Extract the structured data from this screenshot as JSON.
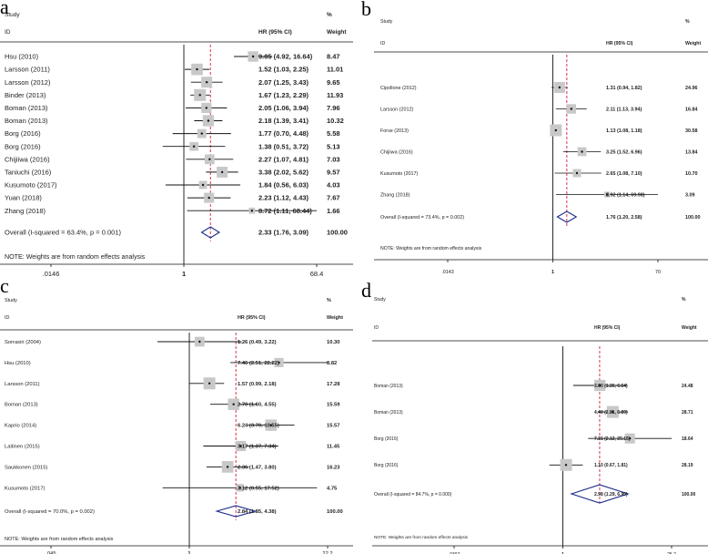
{
  "chart_data": [
    {
      "type": "forest",
      "panel": "a",
      "headers": {
        "study": "Study",
        "id": "ID",
        "hr": "HR (95% CI)",
        "pct": "%",
        "weight": "Weight"
      },
      "studies": [
        {
          "label": "Hsu (2010)",
          "hr": 9.05,
          "lo": 4.92,
          "hi": 16.64,
          "ci": "9.05 (4.92, 16.64)",
          "weight": "8.47"
        },
        {
          "label": "Larsson (2011)",
          "hr": 1.52,
          "lo": 1.03,
          "hi": 2.25,
          "ci": "1.52 (1.03, 2.25)",
          "weight": "11.01"
        },
        {
          "label": "Larsson (2012)",
          "hr": 2.07,
          "lo": 1.25,
          "hi": 3.43,
          "ci": "2.07 (1.25, 3.43)",
          "weight": "9.65"
        },
        {
          "label": "Binder (2013)",
          "hr": 1.67,
          "lo": 1.23,
          "hi": 2.29,
          "ci": "1.67 (1.23, 2.29)",
          "weight": "11.93"
        },
        {
          "label": "Boman (2013)",
          "hr": 2.05,
          "lo": 1.06,
          "hi": 3.94,
          "ci": "2.05 (1.06, 3.94)",
          "weight": "7.96"
        },
        {
          "label": "Boman (2013)",
          "hr": 2.18,
          "lo": 1.39,
          "hi": 3.41,
          "ci": "2.18 (1.39, 3.41)",
          "weight": "10.32"
        },
        {
          "label": "Borg (2016)",
          "hr": 1.77,
          "lo": 0.7,
          "hi": 4.48,
          "ci": "1.77 (0.70, 4.48)",
          "weight": "5.58"
        },
        {
          "label": "Borg (2016)",
          "hr": 1.38,
          "lo": 0.51,
          "hi": 3.72,
          "ci": "1.38 (0.51, 3.72)",
          "weight": "5.13"
        },
        {
          "label": "Chijiiwa (2016)",
          "hr": 2.27,
          "lo": 1.07,
          "hi": 4.81,
          "ci": "2.27 (1.07, 4.81)",
          "weight": "7.03"
        },
        {
          "label": "Taniuchi (2016)",
          "hr": 3.38,
          "lo": 2.02,
          "hi": 5.62,
          "ci": "3.38 (2.02, 5.62)",
          "weight": "9.57"
        },
        {
          "label": "Kusumoto (2017)",
          "hr": 1.84,
          "lo": 0.56,
          "hi": 6.03,
          "ci": "1.84 (0.56, 6.03)",
          "weight": "4.03"
        },
        {
          "label": "Yuan (2018)",
          "hr": 2.23,
          "lo": 1.12,
          "hi": 4.43,
          "ci": "2.23 (1.12, 4.43)",
          "weight": "7.67"
        },
        {
          "label": "Zhang (2018)",
          "hr": 8.72,
          "lo": 1.11,
          "hi": 68.44,
          "ci": "8.72 (1.11, 68.44)",
          "weight": "1.66"
        }
      ],
      "overall": {
        "label": "Overall  (I-squared = 63.4%, p = 0.001)",
        "hr": 2.33,
        "lo": 1.76,
        "hi": 3.09,
        "ci": "2.33 (1.76, 3.09)",
        "weight": "100.00"
      },
      "note": "NOTE: Weights are from random effects analysis",
      "axis": {
        "min": 0.0146,
        "max": 68.4,
        "ticks": [
          ".0146",
          "1",
          "68.4"
        ],
        "scale": "log"
      }
    },
    {
      "type": "forest",
      "panel": "b",
      "headers": {
        "study": "Study",
        "id": "ID",
        "hr": "HR (95% CI)",
        "pct": "%",
        "weight": "Weight"
      },
      "studies": [
        {
          "label": "Cipollone (2012)",
          "hr": 1.31,
          "lo": 0.94,
          "hi": 1.82,
          "ci": "1.31 (0.94, 1.82)",
          "weight": "24.96"
        },
        {
          "label": "Larsson (2012)",
          "hr": 2.11,
          "lo": 1.13,
          "hi": 3.94,
          "ci": "2.11 (1.13, 3.94)",
          "weight": "16.84"
        },
        {
          "label": "Forse (2013)",
          "hr": 1.13,
          "lo": 1.08,
          "hi": 1.18,
          "ci": "1.13 (1.08, 1.18)",
          "weight": "30.58"
        },
        {
          "label": "Chijiiwa (2016)",
          "hr": 3.25,
          "lo": 1.52,
          "hi": 6.96,
          "ci": "3.25 (1.52, 6.96)",
          "weight": "13.84"
        },
        {
          "label": "Kusumoto (2017)",
          "hr": 2.65,
          "lo": 1.08,
          "hi": 7.1,
          "ci": "2.65 (1.08, 7.10)",
          "weight": "10.70"
        },
        {
          "label": "Zhang (2018)",
          "hr": 8.92,
          "lo": 1.14,
          "hi": 69.98,
          "ci": "8.92 (1.14, 69.98)",
          "weight": "3.09"
        }
      ],
      "overall": {
        "label": "Overall  (I-squared = 73.4%, p = 0.002)",
        "hr": 1.76,
        "lo": 1.2,
        "hi": 2.58,
        "ci": "1.76 (1.20, 2.58)",
        "weight": "100.00"
      },
      "note": "NOTE: Weights are from random effects analysis",
      "axis": {
        "min": 0.0143,
        "max": 70,
        "ticks": [
          ".0143",
          "1",
          "70"
        ],
        "scale": "log"
      }
    },
    {
      "type": "forest",
      "panel": "c",
      "headers": {
        "study": "Study",
        "id": "ID",
        "hr": "HR (95% CI)",
        "pct": "%",
        "weight": "Weight"
      },
      "studies": [
        {
          "label": "Sorrasiri (2004)",
          "hr": 1.26,
          "lo": 0.49,
          "hi": 3.22,
          "ci": "1.26 (0.49, 3.22)",
          "weight": "10.30"
        },
        {
          "label": "Hsu (2010)",
          "hr": 7.46,
          "lo": 2.51,
          "hi": 22.22,
          "ci": "7.46 (2.51, 22.22)",
          "weight": "8.82"
        },
        {
          "label": "Larsson (2011)",
          "hr": 1.57,
          "lo": 0.99,
          "hi": 2.18,
          "ci": "1.57 (0.99, 2.18)",
          "weight": "17.28"
        },
        {
          "label": "Boman (2013)",
          "hr": 2.7,
          "lo": 1.6,
          "hi": 4.55,
          "ci": "2.70 (1.60, 4.55)",
          "weight": "15.59"
        },
        {
          "label": "Kaprio (2014)",
          "hr": 6.24,
          "lo": 3.7,
          "hi": 10.55,
          "ci": "6.24 (3.70, 10.55)",
          "weight": "15.57"
        },
        {
          "label": "Laitinen (2015)",
          "hr": 3.17,
          "lo": 1.37,
          "hi": 7.34,
          "ci": "3.17 (1.37, 7.34)",
          "weight": "11.45"
        },
        {
          "label": "Saukkonen (2015)",
          "hr": 2.36,
          "lo": 1.47,
          "hi": 3.8,
          "ci": "2.36 (1.47, 3.80)",
          "weight": "16.23"
        },
        {
          "label": "Kusumoto (2017)",
          "hr": 3.12,
          "lo": 0.55,
          "hi": 17.52,
          "ci": "3.12 (0.55, 17.52)",
          "weight": "4.75"
        }
      ],
      "overall": {
        "label": "Overall  (I-squared = 70.0%, p = 0.002)",
        "hr": 2.84,
        "lo": 1.85,
        "hi": 4.38,
        "ci": "2.84 (1.85, 4.38)",
        "weight": "100.00"
      },
      "note": "NOTE: Weights are from random effects analysis",
      "axis": {
        "min": 0.045,
        "max": 22.2,
        "ticks": [
          ".045",
          "1",
          "22.2"
        ],
        "scale": "log"
      }
    },
    {
      "type": "forest",
      "panel": "d",
      "headers": {
        "study": "Study",
        "id": "ID",
        "hr": "HR (95% CI)",
        "pct": "%",
        "weight": "Weight"
      },
      "studies": [
        {
          "label": "Boman (2013)",
          "hr": 3.0,
          "lo": 1.36,
          "hi": 6.64,
          "ci": "3.00 (1.36, 6.64)",
          "weight": "24.48"
        },
        {
          "label": "Boman (2013)",
          "hr": 4.4,
          "lo": 2.81,
          "hi": 6.89,
          "ci": "4.40 (2.81, 6.89)",
          "weight": "28.71"
        },
        {
          "label": "Borg (2016)",
          "hr": 7.31,
          "lo": 2.12,
          "hi": 25.18,
          "ci": "7.31 (2.12, 25.18)",
          "weight": "18.64"
        },
        {
          "label": "Borg (2016)",
          "hr": 1.1,
          "lo": 0.67,
          "hi": 1.81,
          "ci": "1.10 (0.67, 1.81)",
          "weight": "28.19"
        }
      ],
      "overall": {
        "label": "Overall  (I-squared = 84.7%, p = 0.000)",
        "hr": 2.98,
        "lo": 1.29,
        "hi": 6.9,
        "ci": "2.98 (1.29, 6.90)",
        "weight": "100.00"
      },
      "note": "NOTE: Weights are from random effects analysis",
      "axis": {
        "min": 0.0397,
        "max": 25.2,
        "ticks": [
          ".0397",
          "1",
          "25.2"
        ],
        "scale": "log"
      }
    }
  ],
  "colors": {
    "line": "#111111",
    "box": "#c8c8c8",
    "dashed": "#d0203a",
    "diamond": "#1a2a8c",
    "text": "#222222"
  }
}
